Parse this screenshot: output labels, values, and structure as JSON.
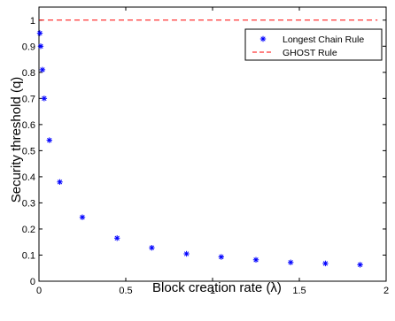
{
  "chart_data": {
    "type": "scatter",
    "title": "",
    "xlabel": "Block creation rate (λ)",
    "ylabel": "Security threshold (q)",
    "xlim": [
      0,
      2
    ],
    "ylim": [
      0,
      1.05
    ],
    "xticks": [
      0,
      0.5,
      1,
      1.5,
      2
    ],
    "xtick_labels": [
      "0",
      "0.5",
      "1",
      "1.5",
      "2"
    ],
    "yticks": [
      0,
      0.1,
      0.2,
      0.3,
      0.4,
      0.5,
      0.6,
      0.7,
      0.8,
      0.9,
      1
    ],
    "ytick_labels": [
      "0",
      "0.1",
      "0.2",
      "0.3",
      "0.4",
      "0.5",
      "0.6",
      "0.7",
      "0.8",
      "0.9",
      "1"
    ],
    "grid": false,
    "legend_position": "top-right",
    "series": [
      {
        "name": "Longest Chain Rule",
        "style": "markers",
        "marker": "*",
        "color": "#0000ff",
        "x": [
          0.005,
          0.01,
          0.02,
          0.03,
          0.06,
          0.12,
          0.25,
          0.45,
          0.65,
          0.85,
          1.05,
          1.25,
          1.45,
          1.65,
          1.85
        ],
        "y": [
          0.95,
          0.9,
          0.81,
          0.7,
          0.54,
          0.38,
          0.245,
          0.165,
          0.128,
          0.105,
          0.093,
          0.082,
          0.072,
          0.068,
          0.063
        ]
      },
      {
        "name": "GHOST Rule",
        "style": "dashed-line",
        "color": "#ff0000",
        "x": [
          0,
          1.95
        ],
        "y": [
          1.0,
          1.0
        ]
      }
    ]
  }
}
